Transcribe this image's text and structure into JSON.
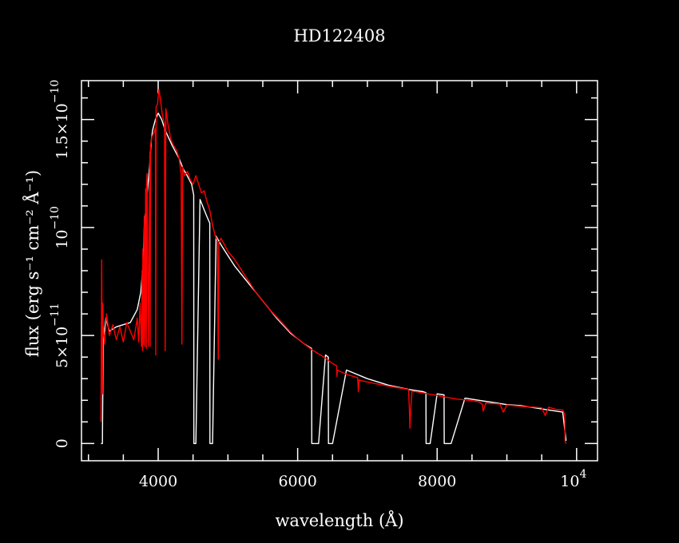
{
  "chart_data": {
    "type": "line",
    "title": "HD122408",
    "xlabel": "wavelength (Å)",
    "ylabel": "flux (erg s⁻¹ cm⁻² Å⁻¹)",
    "xlim": [
      2900,
      10300
    ],
    "ylim": [
      -8e-12,
      1.68e-10
    ],
    "x_ticks": [
      {
        "value": 4000,
        "label": "4000"
      },
      {
        "value": 6000,
        "label": "6000"
      },
      {
        "value": 8000,
        "label": "8000"
      },
      {
        "value": 10000,
        "label": "10",
        "exponent": "4"
      }
    ],
    "y_ticks": [
      {
        "value": 0,
        "label": "0"
      },
      {
        "value": 5e-11,
        "label": "5×10",
        "exponent": "−11"
      },
      {
        "value": 1e-10,
        "label": "10",
        "exponent": "−10"
      },
      {
        "value": 1.5e-10,
        "label": "1.5×10",
        "exponent": "−10"
      }
    ],
    "grid": false,
    "series": [
      {
        "color": "#ffffff",
        "x": [
          3180,
          3200,
          3210,
          3250,
          3300,
          3400,
          3500,
          3600,
          3700,
          3750,
          3790,
          3800,
          3840,
          3880,
          3900,
          3920,
          3960,
          4000,
          4050,
          4100,
          4200,
          4300,
          4360,
          4400,
          4480,
          4510,
          4512,
          4540,
          4600,
          4700,
          4740,
          4742,
          4780,
          4830,
          4900,
          5000,
          5100,
          5300,
          5500,
          5700,
          5900,
          6100,
          6200,
          6202,
          6300,
          6400,
          6440,
          6442,
          6500,
          6700,
          7000,
          7300,
          7600,
          7800,
          7840,
          7842,
          7900,
          8000,
          8100,
          8102,
          8200,
          8400,
          8600,
          8800,
          9000,
          9200,
          9400,
          9600,
          9800,
          9850
        ],
        "y": [
          0,
          0,
          4.7e-11,
          5.8e-11,
          5.2e-11,
          5.4e-11,
          5.5e-11,
          5.6e-11,
          6.2e-11,
          7e-11,
          8.5e-11,
          1e-10,
          1.15e-10,
          1.3e-10,
          1.4e-10,
          1.45e-10,
          1.5e-10,
          1.53e-10,
          1.5e-10,
          1.45e-10,
          1.38e-10,
          1.32e-10,
          1.27e-10,
          1.25e-10,
          1.2e-10,
          1.15e-10,
          0,
          0,
          1.13e-10,
          1.05e-10,
          1.02e-10,
          0,
          0,
          9.6e-11,
          9.2e-11,
          8.7e-11,
          8.2e-11,
          7.4e-11,
          6.6e-11,
          5.8e-11,
          5.1e-11,
          4.6e-11,
          4.4e-11,
          0,
          0,
          4.1e-11,
          4e-11,
          0,
          0,
          3.4e-11,
          3e-11,
          2.7e-11,
          2.5e-11,
          2.4e-11,
          2.35e-11,
          0,
          0,
          2.3e-11,
          2.25e-11,
          0,
          0,
          2.1e-11,
          2e-11,
          1.9e-11,
          1.8e-11,
          1.75e-11,
          1.65e-11,
          1.55e-11,
          1.45e-11,
          1.2e-12
        ]
      },
      {
        "color": "#ff0000",
        "x": [
          3180,
          3190,
          3195,
          3200,
          3205,
          3210,
          3230,
          3260,
          3300,
          3350,
          3400,
          3450,
          3500,
          3550,
          3600,
          3650,
          3700,
          3720,
          3740,
          3760,
          3770,
          3775,
          3780,
          3790,
          3800,
          3810,
          3820,
          3830,
          3835,
          3840,
          3860,
          3880,
          3885,
          3890,
          3910,
          3940,
          3960,
          3965,
          3970,
          3990,
          4010,
          4030,
          4060,
          4090,
          4100,
          4110,
          4140,
          4180,
          4220,
          4260,
          4300,
          4330,
          4340,
          4350,
          4380,
          4420,
          4460,
          4500,
          4540,
          4580,
          4620,
          4660,
          4700,
          4740,
          4780,
          4820,
          4850,
          4861,
          4870,
          4900,
          4950,
          5000,
          5100,
          5200,
          5300,
          5400,
          5500,
          5600,
          5700,
          5800,
          5900,
          6000,
          6100,
          6200,
          6300,
          6400,
          6500,
          6560,
          6563,
          6570,
          6600,
          6700,
          6860,
          6870,
          6880,
          6900,
          7000,
          7100,
          7200,
          7300,
          7400,
          7500,
          7590,
          7600,
          7610,
          7620,
          7640,
          7700,
          7800,
          7900,
          8000,
          8100,
          8200,
          8300,
          8400,
          8500,
          8600,
          8650,
          8660,
          8700,
          8750,
          8800,
          8900,
          8950,
          9000,
          9100,
          9200,
          9300,
          9400,
          9500,
          9550,
          9600,
          9700,
          9800,
          9830,
          9835,
          9850
        ],
        "y": [
          1e-11,
          8.5e-11,
          4.5e-11,
          2.3e-11,
          6.5e-11,
          5.5e-11,
          4.6e-11,
          6e-11,
          5e-11,
          5.5e-11,
          4.8e-11,
          5.4e-11,
          4.7e-11,
          5.6e-11,
          5.2e-11,
          4.8e-11,
          5.8e-11,
          4.7e-11,
          6.5e-11,
          4.5e-11,
          8e-11,
          4.3e-11,
          9e-11,
          4.6e-11,
          1.05e-10,
          4.5e-11,
          1.18e-10,
          4.4e-11,
          1.2e-10,
          1.25e-10,
          4.5e-11,
          1.35e-10,
          4.5e-11,
          1.38e-10,
          1.42e-10,
          1.44e-10,
          1.46e-10,
          4.1e-11,
          1.56e-10,
          1.57e-10,
          1.64e-10,
          1.6e-10,
          1.52e-10,
          1.48e-10,
          4.3e-11,
          1.55e-10,
          1.48e-10,
          1.41e-10,
          1.38e-10,
          1.36e-10,
          1.32e-10,
          1.25e-10,
          4.6e-11,
          1.28e-10,
          1.24e-10,
          1.26e-10,
          1.22e-10,
          1.2e-10,
          1.24e-10,
          1.2e-10,
          1.16e-10,
          1.17e-10,
          1.12e-10,
          1.08e-10,
          1.01e-10,
          9.6e-11,
          9.4e-11,
          3.9e-11,
          9.3e-11,
          9.5e-11,
          9.2e-11,
          8.9e-11,
          8.5e-11,
          8e-11,
          7.5e-11,
          7e-11,
          6.6e-11,
          6.2e-11,
          5.85e-11,
          5.5e-11,
          5.15e-11,
          4.85e-11,
          4.6e-11,
          4.35e-11,
          4.15e-11,
          3.95e-11,
          3.7e-11,
          3.6e-11,
          3.1e-11,
          3.4e-11,
          3.35e-11,
          3.2e-11,
          3.05e-11,
          2.4e-11,
          2.95e-11,
          2.92e-11,
          2.85e-11,
          2.78e-11,
          2.72e-11,
          2.66e-11,
          2.6e-11,
          2.55e-11,
          2.5e-11,
          1.8e-11,
          7e-12,
          1.5e-11,
          2.42e-11,
          2.4e-11,
          2.34e-11,
          2.28e-11,
          2.22e-11,
          2.16e-11,
          2.1e-11,
          2.05e-11,
          2.02e-11,
          1.98e-11,
          1.93e-11,
          1.8e-11,
          1.5e-11,
          1.88e-11,
          1.84e-11,
          1.85e-11,
          1.82e-11,
          1.45e-11,
          1.78e-11,
          1.75e-11,
          1.72e-11,
          1.7e-11,
          1.68e-11,
          1.65e-11,
          1.3e-11,
          1.68e-11,
          1.58e-11,
          1.55e-11,
          1.35e-11,
          1e-12,
          0
        ]
      }
    ]
  }
}
